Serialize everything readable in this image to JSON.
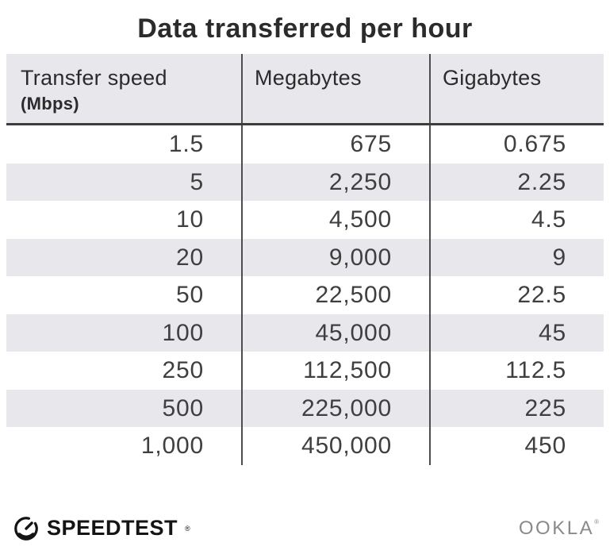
{
  "title": "Data transferred per hour",
  "table": {
    "columns": [
      {
        "label": "Transfer speed",
        "sublabel": "(Mbps)"
      },
      {
        "label": "Megabytes",
        "sublabel": ""
      },
      {
        "label": "Gigabytes",
        "sublabel": ""
      }
    ],
    "rows": [
      [
        "1.5",
        "675",
        "0.675"
      ],
      [
        "5",
        "2,250",
        "2.25"
      ],
      [
        "10",
        "4,500",
        "4.5"
      ],
      [
        "20",
        "9,000",
        "9"
      ],
      [
        "50",
        "22,500",
        "22.5"
      ],
      [
        "100",
        "45,000",
        "45"
      ],
      [
        "250",
        "112,500",
        "112.5"
      ],
      [
        "500",
        "225,000",
        "225"
      ],
      [
        "1,000",
        "450,000",
        "450"
      ]
    ]
  },
  "chart_data": {
    "type": "table",
    "title": "Data transferred per hour",
    "columns": [
      "Transfer speed (Mbps)",
      "Megabytes",
      "Gigabytes"
    ],
    "rows": [
      [
        1.5,
        675,
        0.675
      ],
      [
        5,
        2250,
        2.25
      ],
      [
        10,
        4500,
        4.5
      ],
      [
        20,
        9000,
        9
      ],
      [
        50,
        22500,
        22.5
      ],
      [
        100,
        45000,
        45
      ],
      [
        250,
        112500,
        112.5
      ],
      [
        500,
        225000,
        225
      ],
      [
        1000,
        450000,
        450
      ]
    ]
  },
  "footer": {
    "speedtest_label": "SPEEDTEST",
    "speedtest_trademark": "®",
    "ookla_label": "OOKLA",
    "ookla_trademark": "®"
  },
  "colors": {
    "background": "#ffffff",
    "stripe_bg": "#e8e8ec",
    "divider": "#4d4d4d",
    "header_border": "#3d3d3d",
    "title_text": "#2b2b2b",
    "cell_text": "#3f3f3f",
    "logo_black": "#141414",
    "ookla_gray": "#8a8a8a"
  }
}
